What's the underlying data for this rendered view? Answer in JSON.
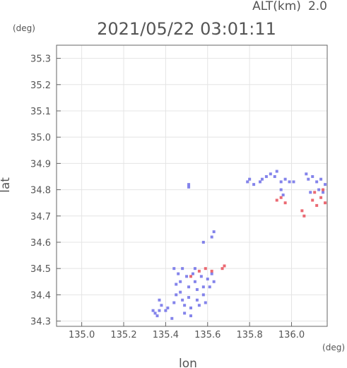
{
  "chart_data": {
    "type": "scatter",
    "title": "2021/05/22 03:01:11",
    "altitude_label": "ALT(km)",
    "altitude_value": "2.0",
    "xlabel": "lon",
    "ylabel": "lat",
    "x_unit": "(deg)",
    "y_unit": "(deg)",
    "xlim": [
      134.88,
      136.17
    ],
    "ylim": [
      34.28,
      35.35
    ],
    "grid": true,
    "xticks": [
      "135.0",
      "135.2",
      "135.4",
      "135.6",
      "135.8",
      "136.0"
    ],
    "yticks": [
      "34.3",
      "34.4",
      "34.5",
      "34.6",
      "34.7",
      "34.8",
      "34.9",
      "35.0",
      "35.1",
      "35.2",
      "35.3"
    ],
    "colors": {
      "weak": "#6f6fe8",
      "strong": "#e8505a",
      "axis": "#666666",
      "grid": "#e4e4e4"
    },
    "series": [
      {
        "color": "#6f6fe8",
        "points": [
          [
            135.34,
            34.34
          ],
          [
            135.35,
            34.33
          ],
          [
            135.36,
            34.32
          ],
          [
            135.37,
            34.34
          ],
          [
            135.38,
            34.36
          ],
          [
            135.37,
            34.38
          ],
          [
            135.4,
            34.34
          ],
          [
            135.41,
            34.35
          ],
          [
            135.43,
            34.31
          ],
          [
            135.44,
            34.37
          ],
          [
            135.45,
            34.4
          ],
          [
            135.45,
            34.44
          ],
          [
            135.46,
            34.48
          ],
          [
            135.47,
            34.45
          ],
          [
            135.47,
            34.41
          ],
          [
            135.48,
            34.38
          ],
          [
            135.49,
            34.36
          ],
          [
            135.5,
            34.47
          ],
          [
            135.51,
            34.43
          ],
          [
            135.51,
            34.39
          ],
          [
            135.52,
            34.35
          ],
          [
            135.53,
            34.48
          ],
          [
            135.54,
            34.45
          ],
          [
            135.55,
            34.42
          ],
          [
            135.55,
            34.38
          ],
          [
            135.56,
            34.36
          ],
          [
            135.57,
            34.47
          ],
          [
            135.58,
            34.43
          ],
          [
            135.58,
            34.4
          ],
          [
            135.59,
            34.37
          ],
          [
            135.6,
            34.46
          ],
          [
            135.61,
            34.43
          ],
          [
            135.62,
            34.48
          ],
          [
            135.63,
            34.45
          ],
          [
            135.54,
            34.5
          ],
          [
            135.48,
            34.5
          ],
          [
            135.44,
            34.5
          ],
          [
            135.52,
            34.32
          ],
          [
            135.49,
            34.33
          ],
          [
            135.58,
            34.6
          ],
          [
            135.62,
            34.62
          ],
          [
            135.63,
            34.64
          ],
          [
            135.51,
            34.81
          ],
          [
            135.51,
            34.82
          ],
          [
            135.79,
            34.83
          ],
          [
            135.8,
            34.84
          ],
          [
            135.82,
            34.82
          ],
          [
            135.85,
            34.83
          ],
          [
            135.86,
            34.84
          ],
          [
            135.88,
            34.85
          ],
          [
            135.9,
            34.86
          ],
          [
            135.92,
            34.85
          ],
          [
            135.93,
            34.87
          ],
          [
            135.95,
            34.83
          ],
          [
            135.97,
            34.84
          ],
          [
            135.99,
            34.83
          ],
          [
            136.01,
            34.83
          ],
          [
            135.95,
            34.8
          ],
          [
            135.96,
            34.78
          ],
          [
            136.07,
            34.86
          ],
          [
            136.08,
            34.84
          ],
          [
            136.1,
            34.85
          ],
          [
            136.12,
            34.83
          ],
          [
            136.14,
            34.84
          ],
          [
            136.16,
            34.82
          ],
          [
            136.15,
            34.79
          ],
          [
            136.13,
            34.8
          ],
          [
            136.09,
            34.79
          ]
        ]
      },
      {
        "color": "#e8505a",
        "points": [
          [
            135.52,
            34.47
          ],
          [
            135.56,
            34.49
          ],
          [
            135.59,
            34.5
          ],
          [
            135.62,
            34.49
          ],
          [
            135.67,
            34.5
          ],
          [
            135.68,
            34.51
          ],
          [
            135.93,
            34.76
          ],
          [
            135.95,
            34.77
          ],
          [
            135.97,
            34.75
          ],
          [
            136.05,
            34.72
          ],
          [
            136.06,
            34.7
          ],
          [
            136.1,
            34.76
          ],
          [
            136.12,
            34.74
          ],
          [
            136.14,
            34.77
          ],
          [
            136.16,
            34.75
          ],
          [
            136.15,
            34.8
          ],
          [
            136.11,
            34.79
          ]
        ]
      }
    ]
  }
}
